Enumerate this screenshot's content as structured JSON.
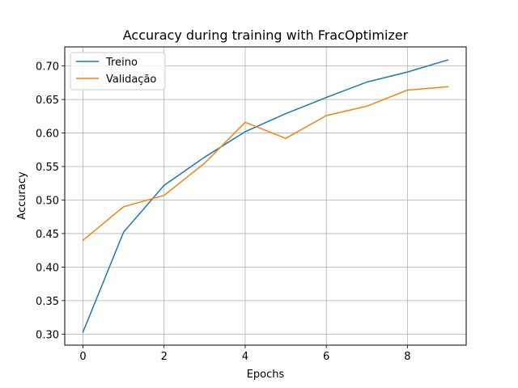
{
  "chart_data": {
    "type": "line",
    "title": "Accuracy during training with FracOptimizer",
    "xlabel": "Epochs",
    "ylabel": "Accuracy",
    "x": [
      0,
      1,
      2,
      3,
      4,
      5,
      6,
      7,
      8,
      9
    ],
    "xlim": [
      -0.45,
      9.45
    ],
    "ylim": [
      0.2835,
      0.7285
    ],
    "xticks": [
      0,
      2,
      4,
      6,
      8
    ],
    "yticks": [
      0.3,
      0.35,
      0.4,
      0.45,
      0.5,
      0.55,
      0.6,
      0.65,
      0.7
    ],
    "grid": true,
    "legend_position": "top-left",
    "series": [
      {
        "name": "Treino",
        "color": "#1f77b4",
        "values": [
          0.303,
          0.452,
          0.522,
          0.564,
          0.602,
          0.629,
          0.653,
          0.676,
          0.691,
          0.709
        ]
      },
      {
        "name": "Validação",
        "color": "#ff7f0e",
        "values": [
          0.44,
          0.49,
          0.507,
          0.555,
          0.616,
          0.592,
          0.626,
          0.64,
          0.664,
          0.669
        ]
      }
    ]
  }
}
